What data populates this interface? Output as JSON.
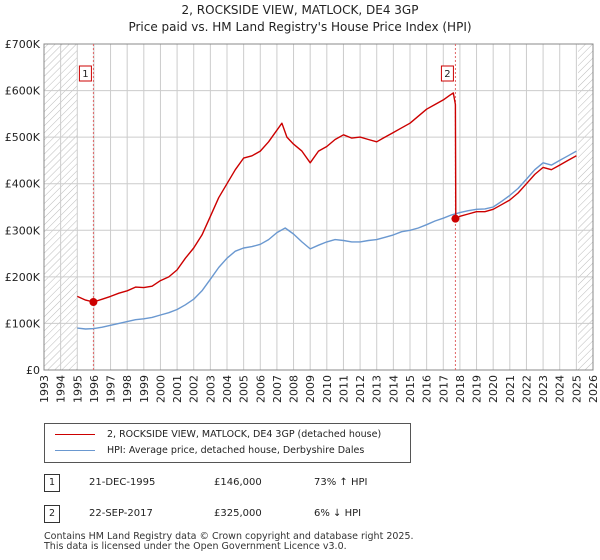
{
  "chart_data": {
    "type": "line",
    "title": "2, ROCKSIDE VIEW, MATLOCK, DE4 3GP",
    "subtitle": "Price paid vs. HM Land Registry's House Price Index (HPI)",
    "xlim": [
      1993,
      2026
    ],
    "ylim": [
      0,
      700000
    ],
    "y_ticks": [
      0,
      100000,
      200000,
      300000,
      400000,
      500000,
      600000,
      700000
    ],
    "y_tick_labels": [
      "£0",
      "£100K",
      "£200K",
      "£300K",
      "£400K",
      "£500K",
      "£600K",
      "£700K"
    ],
    "x_ticks": [
      1993,
      1994,
      1995,
      1996,
      1997,
      1998,
      1999,
      2000,
      2001,
      2002,
      2003,
      2004,
      2005,
      2006,
      2007,
      2008,
      2009,
      2010,
      2011,
      2012,
      2013,
      2014,
      2015,
      2016,
      2017,
      2018,
      2019,
      2020,
      2021,
      2022,
      2023,
      2024,
      2025,
      2026
    ],
    "grid": true,
    "hatched_ranges": [
      [
        1993,
        1995.0
      ],
      [
        2025.1,
        2026
      ]
    ],
    "series": [
      {
        "name": "2, ROCKSIDE VIEW, MATLOCK, DE4 3GP (detached house)",
        "color": "#cc0000",
        "x": [
          1995.0,
          1995.5,
          1995.97,
          1996.5,
          1997.0,
          1997.5,
          1998.0,
          1998.5,
          1999.0,
          1999.5,
          2000.0,
          2000.5,
          2001.0,
          2001.5,
          2002.0,
          2002.5,
          2003.0,
          2003.5,
          2004.0,
          2004.5,
          2005.0,
          2005.5,
          2006.0,
          2006.5,
          2007.0,
          2007.3,
          2007.6,
          2008.0,
          2008.5,
          2009.0,
          2009.5,
          2010.0,
          2010.5,
          2011.0,
          2011.5,
          2012.0,
          2012.5,
          2013.0,
          2013.5,
          2014.0,
          2014.5,
          2015.0,
          2015.5,
          2016.0,
          2016.5,
          2017.0,
          2017.4,
          2017.6,
          2017.73,
          2017.75,
          2018.0,
          2018.5,
          2019.0,
          2019.5,
          2020.0,
          2020.5,
          2021.0,
          2021.5,
          2022.0,
          2022.5,
          2023.0,
          2023.5,
          2024.0,
          2024.5,
          2025.0
        ],
        "values": [
          158000,
          150000,
          146000,
          152000,
          158000,
          165000,
          170000,
          178000,
          177000,
          180000,
          192000,
          200000,
          215000,
          240000,
          262000,
          290000,
          330000,
          370000,
          400000,
          430000,
          455000,
          460000,
          470000,
          490000,
          515000,
          530000,
          500000,
          485000,
          470000,
          445000,
          470000,
          480000,
          495000,
          505000,
          498000,
          500000,
          495000,
          490000,
          500000,
          510000,
          520000,
          530000,
          545000,
          560000,
          570000,
          580000,
          590000,
          595000,
          570000,
          325000,
          330000,
          335000,
          340000,
          340000,
          345000,
          355000,
          365000,
          380000,
          400000,
          420000,
          435000,
          430000,
          440000,
          450000,
          460000
        ]
      },
      {
        "name": "HPI: Average price, detached house, Derbyshire Dales",
        "color": "#6a98d0",
        "x": [
          1995.0,
          1995.5,
          1996.0,
          1996.5,
          1997.0,
          1997.5,
          1998.0,
          1998.5,
          1999.0,
          1999.5,
          2000.0,
          2000.5,
          2001.0,
          2001.5,
          2002.0,
          2002.5,
          2003.0,
          2003.5,
          2004.0,
          2004.5,
          2005.0,
          2005.5,
          2006.0,
          2006.5,
          2007.0,
          2007.5,
          2008.0,
          2008.5,
          2009.0,
          2009.5,
          2010.0,
          2010.5,
          2011.0,
          2011.5,
          2012.0,
          2012.5,
          2013.0,
          2013.5,
          2014.0,
          2014.5,
          2015.0,
          2015.5,
          2016.0,
          2016.5,
          2017.0,
          2017.5,
          2018.0,
          2018.5,
          2019.0,
          2019.5,
          2020.0,
          2020.5,
          2021.0,
          2021.5,
          2022.0,
          2022.5,
          2023.0,
          2023.5,
          2024.0,
          2024.5,
          2025.0
        ],
        "values": [
          90000,
          88000,
          89000,
          92000,
          96000,
          100000,
          104000,
          108000,
          110000,
          113000,
          118000,
          123000,
          130000,
          140000,
          152000,
          170000,
          195000,
          220000,
          240000,
          255000,
          262000,
          265000,
          270000,
          280000,
          295000,
          305000,
          292000,
          275000,
          260000,
          268000,
          275000,
          280000,
          278000,
          275000,
          275000,
          278000,
          280000,
          285000,
          290000,
          297000,
          300000,
          305000,
          312000,
          320000,
          326000,
          333000,
          338000,
          342000,
          345000,
          346000,
          350000,
          362000,
          375000,
          390000,
          410000,
          430000,
          445000,
          440000,
          450000,
          460000,
          470000
        ]
      }
    ],
    "markers": [
      {
        "label": "1",
        "x": 1995.97,
        "value": 146000
      },
      {
        "label": "2",
        "x": 2017.73,
        "value": 325000
      }
    ]
  },
  "legend": {
    "items": [
      {
        "label": "2, ROCKSIDE VIEW, MATLOCK, DE4 3GP (detached house)",
        "color": "#cc0000"
      },
      {
        "label": "HPI: Average price, detached house, Derbyshire Dales",
        "color": "#6a98d0"
      }
    ]
  },
  "transactions": [
    {
      "num": "1",
      "date": "21-DEC-1995",
      "price": "£146,000",
      "hpi": "73% ↑ HPI"
    },
    {
      "num": "2",
      "date": "22-SEP-2017",
      "price": "£325,000",
      "hpi": "6% ↓ HPI"
    }
  ],
  "footer": {
    "line1": "Contains HM Land Registry data © Crown copyright and database right 2025.",
    "line2": "This data is licensed under the Open Government Licence v3.0."
  }
}
